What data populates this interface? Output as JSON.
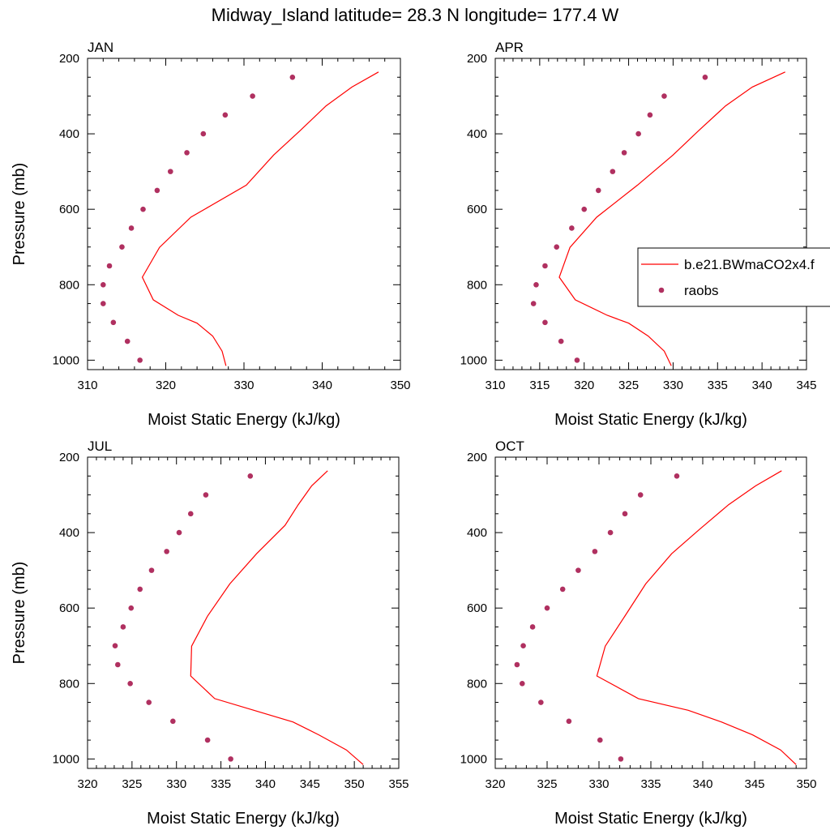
{
  "title": "Midway_Island  latitude= 28.3 N longitude= 177.4 W",
  "legend": {
    "entries": [
      {
        "label": "b.e21.BWmaCO2x4.f",
        "marker": "line",
        "color": "#ff0000"
      },
      {
        "label": "raobs",
        "marker": "dot",
        "color": "#b03060"
      }
    ],
    "placement": "right of APR panel, clipped at image edge"
  },
  "chart_data": [
    {
      "type": "line",
      "panel": "JAN",
      "title": "JAN",
      "xlabel": "Moist Static Energy (kJ/kg)",
      "ylabel": "Pressure (mb)",
      "xlim": [
        310,
        350
      ],
      "ylim": [
        1025,
        200
      ],
      "y_reversed": true,
      "xticks": [
        310,
        320,
        330,
        340,
        350
      ],
      "yticks": [
        200,
        400,
        600,
        800,
        1000
      ],
      "series": [
        {
          "name": "b.e21.BWmaCO2x4.f",
          "style": "line",
          "color": "#ff0000",
          "points": [
            [
              347.2,
              236
            ],
            [
              343.8,
              276
            ],
            [
              340.5,
              326
            ],
            [
              337.2,
              391
            ],
            [
              333.8,
              456
            ],
            [
              330.3,
              536
            ],
            [
              323.2,
              621
            ],
            [
              319.2,
              701
            ],
            [
              317.0,
              780
            ],
            [
              318.4,
              840
            ],
            [
              321.6,
              881
            ],
            [
              324.0,
              902
            ],
            [
              326.0,
              936
            ],
            [
              327.2,
              976
            ],
            [
              327.7,
              1015
            ]
          ]
        },
        {
          "name": "raobs",
          "style": "scatter",
          "color": "#b03060",
          "points": [
            [
              336.2,
              250
            ],
            [
              331.1,
              300
            ],
            [
              327.6,
              350
            ],
            [
              324.8,
              400
            ],
            [
              322.7,
              450
            ],
            [
              320.6,
              500
            ],
            [
              318.9,
              550
            ],
            [
              317.1,
              600
            ],
            [
              315.6,
              650
            ],
            [
              314.4,
              700
            ],
            [
              312.8,
              750
            ],
            [
              312.0,
              800
            ],
            [
              312.0,
              850
            ],
            [
              313.3,
              900
            ],
            [
              315.1,
              950
            ],
            [
              316.7,
              1000
            ]
          ]
        }
      ]
    },
    {
      "type": "line",
      "panel": "APR",
      "title": "APR",
      "xlabel": "Moist Static Energy (kJ/kg)",
      "ylabel": "",
      "xlim": [
        310,
        345
      ],
      "ylim": [
        1025,
        200
      ],
      "y_reversed": true,
      "xticks": [
        310,
        315,
        320,
        325,
        330,
        335,
        340,
        345
      ],
      "yticks": [
        200,
        400,
        600,
        800,
        1000
      ],
      "series": [
        {
          "name": "b.e21.BWmaCO2x4.f",
          "style": "line",
          "color": "#ff0000",
          "points": [
            [
              342.6,
              236
            ],
            [
              338.9,
              276
            ],
            [
              335.9,
              326
            ],
            [
              332.9,
              391
            ],
            [
              330.0,
              456
            ],
            [
              326.0,
              536
            ],
            [
              321.4,
              621
            ],
            [
              318.4,
              701
            ],
            [
              317.2,
              780
            ],
            [
              319.0,
              840
            ],
            [
              322.6,
              881
            ],
            [
              325.0,
              902
            ],
            [
              327.2,
              936
            ],
            [
              329.0,
              976
            ],
            [
              329.8,
              1015
            ]
          ]
        },
        {
          "name": "raobs",
          "style": "scatter",
          "color": "#b03060",
          "points": [
            [
              333.6,
              250
            ],
            [
              329.0,
              300
            ],
            [
              327.4,
              350
            ],
            [
              326.1,
              400
            ],
            [
              324.5,
              450
            ],
            [
              323.2,
              500
            ],
            [
              321.6,
              550
            ],
            [
              320.0,
              600
            ],
            [
              318.6,
              650
            ],
            [
              316.9,
              700
            ],
            [
              315.6,
              750
            ],
            [
              314.6,
              800
            ],
            [
              314.3,
              850
            ],
            [
              315.6,
              900
            ],
            [
              317.4,
              950
            ],
            [
              319.2,
              1000
            ]
          ]
        }
      ]
    },
    {
      "type": "line",
      "panel": "JUL",
      "title": "JUL",
      "xlabel": "Moist Static Energy (kJ/kg)",
      "ylabel": "Pressure (mb)",
      "xlim": [
        320,
        355
      ],
      "ylim": [
        1025,
        200
      ],
      "y_reversed": true,
      "xticks": [
        320,
        325,
        330,
        335,
        340,
        345,
        350,
        355
      ],
      "yticks": [
        200,
        400,
        600,
        800,
        1000
      ],
      "series": [
        {
          "name": "b.e21.BWmaCO2x4.f",
          "style": "line",
          "color": "#ff0000",
          "points": [
            [
              347.0,
              236
            ],
            [
              345.2,
              276
            ],
            [
              343.7,
              326
            ],
            [
              342.2,
              381
            ],
            [
              339.0,
              456
            ],
            [
              336.0,
              536
            ],
            [
              333.5,
              621
            ],
            [
              331.7,
              701
            ],
            [
              331.6,
              780
            ],
            [
              334.3,
              840
            ],
            [
              338.7,
              871
            ],
            [
              343.1,
              902
            ],
            [
              346.0,
              936
            ],
            [
              349.1,
              976
            ],
            [
              351.0,
              1015
            ]
          ]
        },
        {
          "name": "raobs",
          "style": "scatter",
          "color": "#b03060",
          "points": [
            [
              338.3,
              250
            ],
            [
              333.3,
              300
            ],
            [
              331.6,
              350
            ],
            [
              330.3,
              400
            ],
            [
              328.9,
              450
            ],
            [
              327.2,
              500
            ],
            [
              325.9,
              550
            ],
            [
              324.9,
              600
            ],
            [
              324.0,
              650
            ],
            [
              323.1,
              700
            ],
            [
              323.4,
              750
            ],
            [
              324.8,
              800
            ],
            [
              326.9,
              850
            ],
            [
              329.6,
              900
            ],
            [
              333.5,
              950
            ],
            [
              336.1,
              1000
            ]
          ]
        }
      ]
    },
    {
      "type": "line",
      "panel": "OCT",
      "title": "OCT",
      "xlabel": "Moist Static Energy (kJ/kg)",
      "ylabel": "",
      "xlim": [
        320,
        350
      ],
      "ylim": [
        1025,
        200
      ],
      "y_reversed": true,
      "xticks": [
        320,
        325,
        330,
        335,
        340,
        345,
        350
      ],
      "yticks": [
        200,
        400,
        600,
        800,
        1000
      ],
      "series": [
        {
          "name": "b.e21.BWmaCO2x4.f",
          "style": "line",
          "color": "#ff0000",
          "points": [
            [
              347.6,
              236
            ],
            [
              345.1,
              276
            ],
            [
              342.5,
              326
            ],
            [
              339.7,
              391
            ],
            [
              337.0,
              456
            ],
            [
              334.5,
              536
            ],
            [
              332.5,
              621
            ],
            [
              330.6,
              701
            ],
            [
              329.8,
              780
            ],
            [
              333.8,
              840
            ],
            [
              338.6,
              871
            ],
            [
              341.8,
              902
            ],
            [
              344.8,
              936
            ],
            [
              347.5,
              976
            ],
            [
              349.0,
              1015
            ]
          ]
        },
        {
          "name": "raobs",
          "style": "scatter",
          "color": "#b03060",
          "points": [
            [
              337.5,
              250
            ],
            [
              334.0,
              300
            ],
            [
              332.5,
              350
            ],
            [
              331.1,
              400
            ],
            [
              329.6,
              450
            ],
            [
              328.0,
              500
            ],
            [
              326.5,
              550
            ],
            [
              325.0,
              600
            ],
            [
              323.6,
              650
            ],
            [
              322.7,
              700
            ],
            [
              322.1,
              750
            ],
            [
              322.6,
              800
            ],
            [
              324.4,
              850
            ],
            [
              327.1,
              900
            ],
            [
              330.1,
              950
            ],
            [
              332.1,
              1000
            ]
          ]
        }
      ]
    }
  ]
}
